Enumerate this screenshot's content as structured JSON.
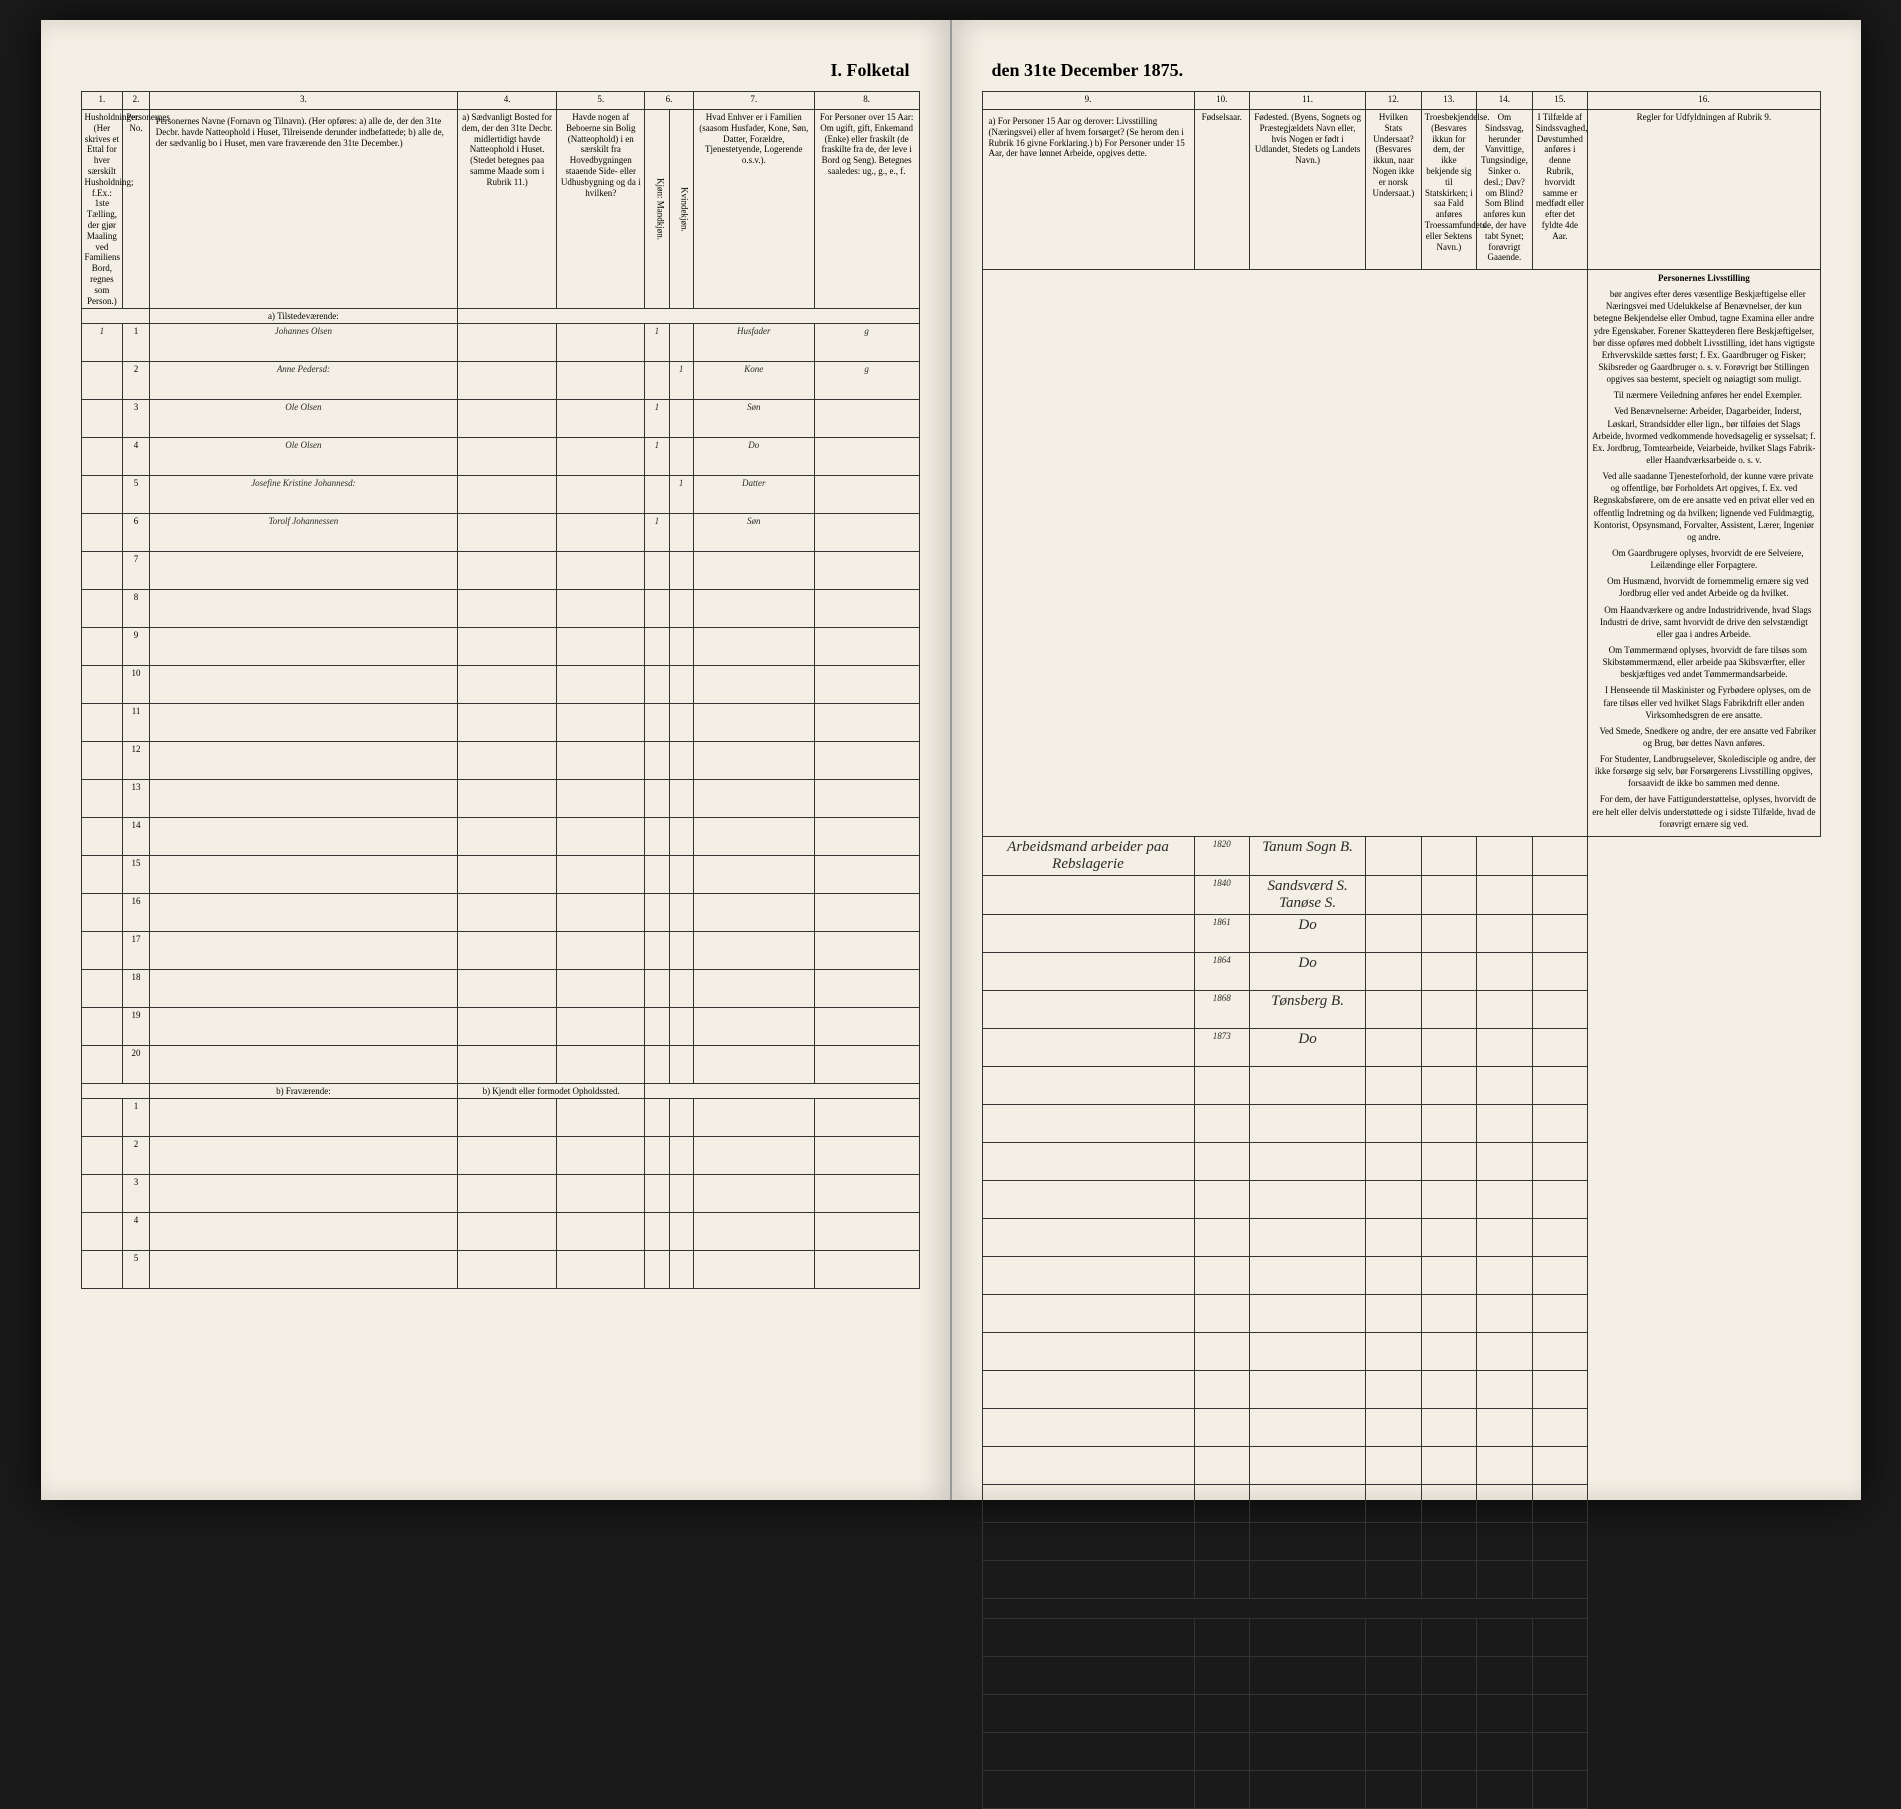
{
  "document": {
    "title_left": "I. Folketal",
    "title_right": "den 31te December 1875.",
    "background_color": "#f4efe4",
    "border_color": "#333333",
    "handwriting_color": "#2a2a2a"
  },
  "columns_left": {
    "c1": "1.",
    "c2": "2.",
    "c3": "3.",
    "c4": "4.",
    "c5": "5.",
    "c6": "6.",
    "c7": "7.",
    "c8": "8."
  },
  "columns_right": {
    "c9": "9.",
    "c10": "10.",
    "c11": "11.",
    "c12": "12.",
    "c13": "13.",
    "c14": "14.",
    "c15": "15.",
    "c16": "16."
  },
  "headers_left": {
    "h1": "Husholdninger. (Her skrives et Ettal for hver særskilt Husholdning; f.Ex.: 1ste Tælling, der gjør Maaling ved Familiens Bord, regnes som Person.)",
    "h2": "Personernes No.",
    "h3": "Personernes Navne (Fornavn og Tilnavn). (Her opføres: a) alle de, der den 31te Decbr. havde Natteophold i Huset, Tilreisende derunder indbefattede; b) alle de, der sædvanlig bo i Huset, men vare fraværende den 31te December.)",
    "h4": "a) Sædvanligt Bosted for dem, der den 31te Decbr. midlertidigt havde Natteophold i Huset. (Stedet betegnes paa samme Maade som i Rubrik 11.)",
    "h5": "Havde nogen af Beboerne sin Bolig (Natteophold) i en særskilt fra Hovedbygningen staaende Side- eller Udhusbygning og da i hvilken?",
    "h6a": "Kjøn: Mandkjøn.",
    "h6b": "Kvindekjøn.",
    "h7": "Hvad Enhver er i Familien (saasom Husfader, Kone, Søn, Datter, Forældre, Tjenestetyende, Logerende o.s.v.).",
    "h8": "For Personer over 15 Aar: Om ugift, gift, Enkemand (Enke) eller fraskilt (de fraskilte fra de, der leve i Bord og Seng). Betegnes saaledes: ug., g., e., f."
  },
  "headers_right": {
    "h9": "a) For Personer 15 Aar og derover: Livsstilling (Næringsvei) eller af hvem forsørget? (Se herom den i Rubrik 16 givne Forklaring.) b) For Personer under 15 Aar, der have lønnet Arbeide, opgives dette.",
    "h10": "Fødselsaar.",
    "h11": "Fødested. (Byens, Sognets og Præstegjældets Navn eller, hvis Nogen er født i Udlandet, Stedets og Landets Navn.)",
    "h12": "Hvilken Stats Undersaat? (Besvares ikkun, naar Nogen ikke er norsk Undersaat.)",
    "h13": "Troesbekjendelse. (Besvares ikkun for dem, der ikke bekjende sig til Statskirken; i saa Fald anføres Troessamfundets eller Sektens Navn.)",
    "h14": "Om Sindssvag, herunder Vanvittige, Tungsindige, Sinker o. desl.; Døv? om Blind? Som Blind anføres kun de, der have tabt Synet; forøvrigt Gaaende.",
    "h15": "I Tilfælde af Sindssvaghed, Døvstumhed anføres i denne Rubrik, hvorvidt samme er medfødt eller efter det fyldte 4de Aar.",
    "h16_title": "Regler for Udfyldningen af Rubrik 9."
  },
  "sections": {
    "a_present": "a) Tilstedeværende:",
    "b_absent": "b) Fraværende:",
    "b_location": "b) Kjendt eller formodet Opholdssted."
  },
  "rows_a": [
    {
      "hh": "1",
      "no": "1",
      "name": "Johannes Olsen",
      "c4": "",
      "c5": "",
      "m": "1",
      "k": "",
      "rel": "Husfader",
      "ms": "g",
      "occ": "Arbeidsmand arbeider paa Rebslagerie",
      "year": "1820",
      "place": "Tanum Sogn B."
    },
    {
      "hh": "",
      "no": "2",
      "name": "Anne Pedersd:",
      "c4": "",
      "c5": "",
      "m": "",
      "k": "1",
      "rel": "Kone",
      "ms": "g",
      "occ": "",
      "year": "1840",
      "place": "Sandsværd S. Tanøse S."
    },
    {
      "hh": "",
      "no": "3",
      "name": "Ole Olsen",
      "c4": "",
      "c5": "",
      "m": "1",
      "k": "",
      "rel": "Søn",
      "ms": "",
      "occ": "",
      "year": "1861",
      "place": "Do"
    },
    {
      "hh": "",
      "no": "4",
      "name": "Ole Olsen",
      "c4": "",
      "c5": "",
      "m": "1",
      "k": "",
      "rel": "Do",
      "ms": "",
      "occ": "",
      "year": "1864",
      "place": "Do"
    },
    {
      "hh": "",
      "no": "5",
      "name": "Josefine Kristine Johannesd:",
      "c4": "",
      "c5": "",
      "m": "",
      "k": "1",
      "rel": "Datter",
      "ms": "",
      "occ": "",
      "year": "1868",
      "place": "Tønsberg B."
    },
    {
      "hh": "",
      "no": "6",
      "name": "Torolf Johannessen",
      "c4": "",
      "c5": "",
      "m": "1",
      "k": "",
      "rel": "Søn",
      "ms": "",
      "occ": "",
      "year": "1873",
      "place": "Do"
    }
  ],
  "empty_a_rows": [
    7,
    8,
    9,
    10,
    11,
    12,
    13,
    14,
    15,
    16,
    17,
    18,
    19,
    20
  ],
  "empty_b_rows": [
    1,
    2,
    3,
    4,
    5
  ],
  "instructions": {
    "title": "Personernes Livsstilling",
    "paragraphs": [
      "bør angives efter deres væsentlige Beskjæftigelse eller Næringsvei med Udelukkelse af Benævnelser, der kun betegne Bekjendelse eller Ombud, tagne Examina eller andre ydre Egenskaber. Forener Skatteyderen flere Beskjæftigelser, bør disse opføres med dobbelt Livsstilling, idet hans vigtigste Erhvervskilde sættes først; f. Ex. Gaardbruger og Fisker; Skibsreder og Gaardbruger o. s. v. Forøvrigt bør Stillingen opgives saa bestemt, specielt og nøiagtigt som muligt.",
      "Til nærmere Veiledning anføres her endel Exempler.",
      "Ved Benævnelserne: Arbeider, Dagarbeider, Inderst, Løskarl, Strandsidder eller lign., bør tilføies det Slags Arbeide, hvormed vedkommende hovedsagelig er sysselsat; f. Ex. Jordbrug, Tomtearbeide, Veiarbeide, hvilket Slags Fabrik- eller Haandværksarbeide o. s. v.",
      "Ved alle saadanne Tjenesteforhold, der kunne være private og offentlige, bør Forholdets Art opgives, f. Ex. ved Regnskabsførere, om de ere ansatte ved en privat eller ved en offentlig Indretning og da hvilken; lignende ved Fuldmægtig, Kontorist, Opsynsmand, Forvalter, Assistent, Lærer, Ingeniør og andre.",
      "Om Gaardbrugere oplyses, hvorvidt de ere Selveiere, Leilændinge eller Forpagtere.",
      "Om Husmænd, hvorvidt de fornemmelig ernære sig ved Jordbrug eller ved andet Arbeide og da hvilket.",
      "Om Haandværkere og andre Industridrivende, hvad Slags Industri de drive, samt hvorvidt de drive den selvstændigt eller gaa i andres Arbeide.",
      "Om Tømmermænd oplyses, hvorvidt de fare tilsøs som Skibstømmermænd, eller arbeide paa Skibsværfter, eller beskjæftiges ved andet Tømmermandsarbeide.",
      "I Henseende til Maskinister og Fyrbødere oplyses, om de fare tilsøs eller ved hvilket Slags Fabrikdrift eller anden Virksomhedsgren de ere ansatte.",
      "Ved Smede, Snedkere og andre, der ere ansatte ved Fabriker og Brug, bør dettes Navn anføres.",
      "For Studenter, Landbrugselever, Skoledisciple og andre, der ikke forsørge sig selv, bør Forsørgerens Livsstilling opgives, forsaavidt de ikke bo sammen med denne.",
      "For dem, der have Fattigunderstøttelse, oplyses, hvorvidt de ere helt eller delvis understøttede og i sidste Tilfælde, hvad de forøvrigt ernære sig ved."
    ]
  }
}
